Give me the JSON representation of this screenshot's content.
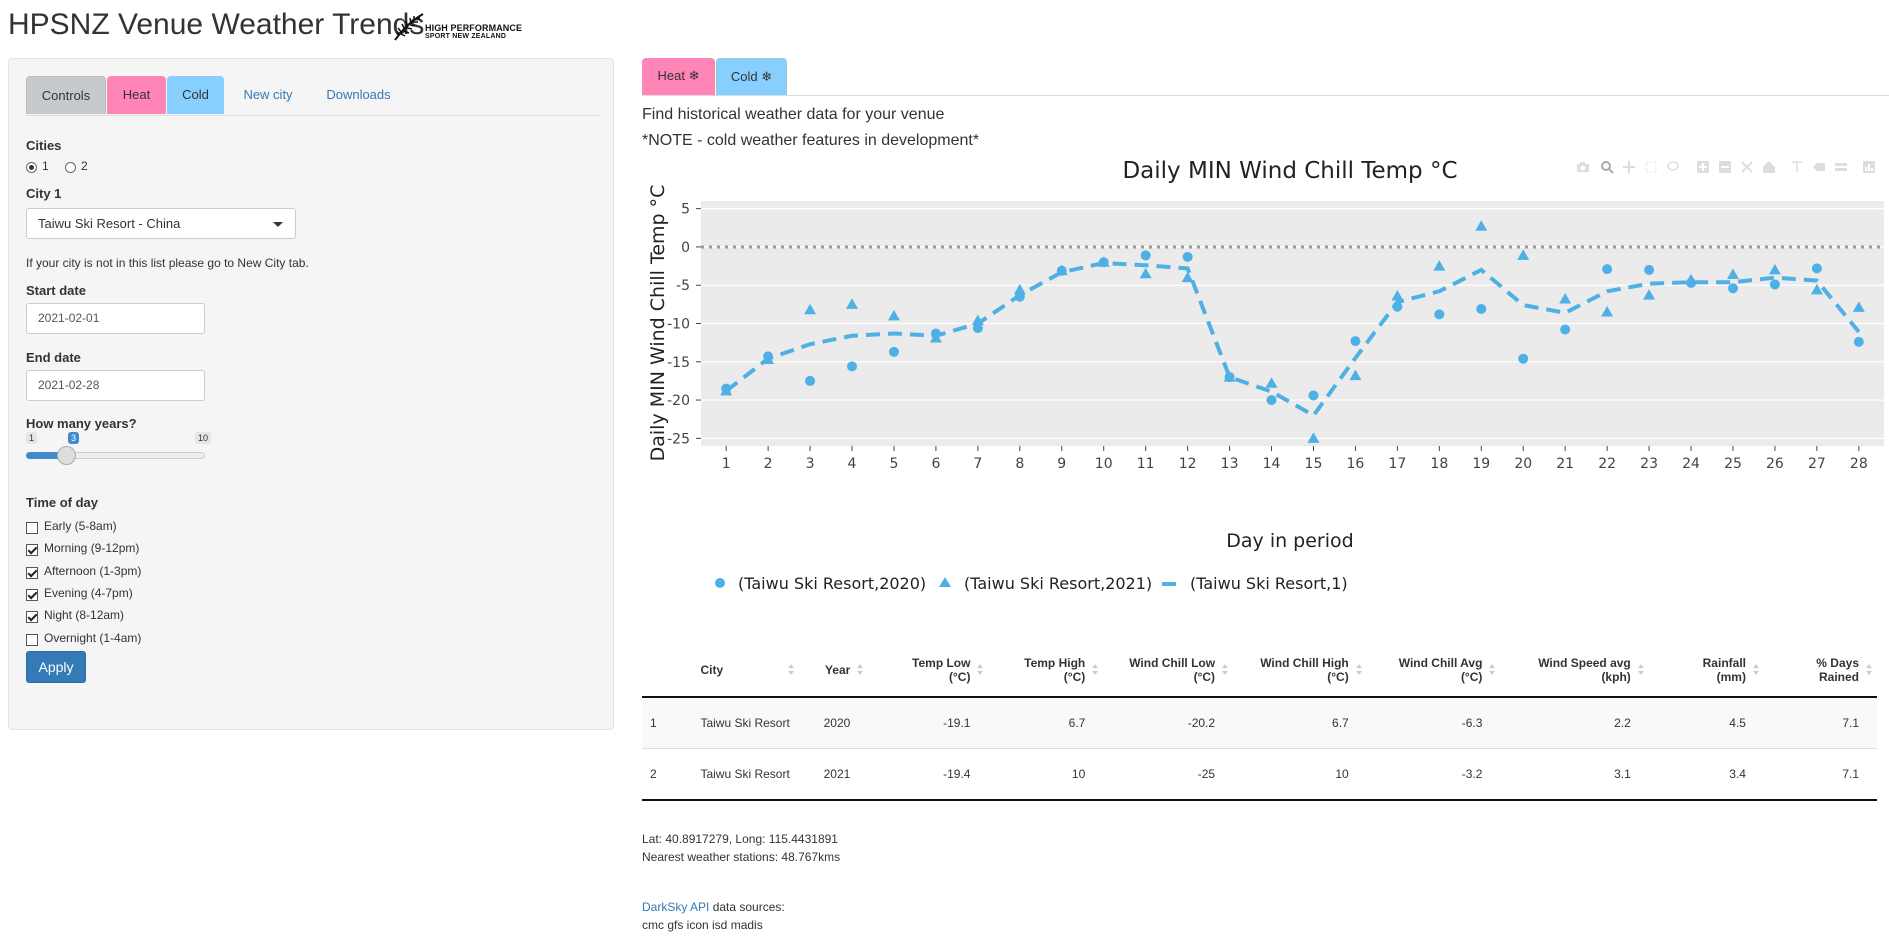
{
  "app": {
    "title": "HPSNZ Venue Weather Trends",
    "logo_line1": "HIGH PERFORMANCE",
    "logo_line2": "SPORT NEW ZEALAND"
  },
  "sidebar": {
    "tabs": [
      {
        "label": "Controls",
        "color": "#c7cacd"
      },
      {
        "label": "Heat",
        "color": "#ff85b6"
      },
      {
        "label": "Cold",
        "color": "#87cfff"
      },
      {
        "label": "New city"
      },
      {
        "label": "Downloads"
      }
    ],
    "cities_label": "Cities",
    "cities_options": [
      "1",
      "2"
    ],
    "cities_selected": "1",
    "city1_label": "City 1",
    "city1_value": "Taiwu Ski Resort - China",
    "city_note": "If your city is not in this list please go to New City tab.",
    "start_label": "Start date",
    "start_value": "2021-02-01",
    "end_label": "End date",
    "end_value": "2021-02-28",
    "years_label": "How many years?",
    "years_min": "1",
    "years_max": "10",
    "years_value": "3",
    "years_fraction": 0.222,
    "time_label": "Time of day",
    "time_options": [
      {
        "label": "Early (5-8am)",
        "checked": false
      },
      {
        "label": "Morning (9-12pm)",
        "checked": true
      },
      {
        "label": "Afternoon (1-3pm)",
        "checked": true
      },
      {
        "label": "Evening (4-7pm)",
        "checked": true
      },
      {
        "label": "Night (8-12am)",
        "checked": true
      },
      {
        "label": "Overnight (1-4am)",
        "checked": false
      }
    ],
    "apply_label": "Apply"
  },
  "main": {
    "tabs": [
      {
        "label": "Heat ❄",
        "color": "#ff85b6"
      },
      {
        "label": "Cold ❄",
        "color": "#87cfff"
      }
    ],
    "intro": "Find historical weather data for your venue",
    "note": "*NOTE - cold weather features in development*"
  },
  "chart_data": {
    "type": "scatter",
    "title": "Daily MIN Wind Chill Temp °C",
    "xlabel": "Day in period",
    "ylabel": "Daily MIN Wind Chill Temp °C",
    "x": [
      1,
      2,
      3,
      4,
      5,
      6,
      7,
      8,
      9,
      10,
      11,
      12,
      13,
      14,
      15,
      16,
      17,
      18,
      19,
      20,
      21,
      22,
      23,
      24,
      25,
      26,
      27,
      28
    ],
    "ylim": [
      -26,
      6
    ],
    "yticks": [
      5,
      0,
      -5,
      -10,
      -15,
      -20,
      -25
    ],
    "reference_line": 0,
    "color": "#4fb0e6",
    "series": [
      {
        "name": "(Taiwu Ski Resort,2020)",
        "marker": "circle",
        "values": [
          -18.5,
          -14.3,
          -17.5,
          -15.6,
          -13.7,
          -11.3,
          -10.6,
          -6.5,
          -3.1,
          -2.0,
          -1.1,
          -1.3,
          -17.0,
          -20.0,
          -19.4,
          -12.3,
          -7.8,
          -8.8,
          -8.1,
          -14.6,
          -10.8,
          -2.9,
          -3.0,
          -4.7,
          -5.4,
          -4.9,
          -2.8,
          -12.4
        ]
      },
      {
        "name": "(Taiwu Ski Resort,2021)",
        "marker": "triangle",
        "values": [
          -18.8,
          -14.7,
          -8.2,
          -7.5,
          -9.0,
          -11.9,
          -9.6,
          -5.6,
          -3.1,
          -2.0,
          -3.5,
          -4.0,
          -17.0,
          -17.8,
          -25.0,
          -16.8,
          -6.4,
          -2.5,
          2.7,
          -1.1,
          -6.8,
          -8.5,
          -6.3,
          -4.3,
          -3.6,
          -3.0,
          -5.6,
          -7.9
        ]
      },
      {
        "name": "(Taiwu Ski Resort,1)",
        "marker": "dash",
        "values": [
          -18.8,
          -14.6,
          -12.7,
          -11.6,
          -11.3,
          -11.6,
          -10.0,
          -6.3,
          -3.3,
          -2.1,
          -2.4,
          -2.8,
          -17.0,
          -18.9,
          -22.0,
          -14.5,
          -7.2,
          -5.8,
          -3.0,
          -7.6,
          -8.6,
          -5.8,
          -4.8,
          -4.6,
          -4.6,
          -4.0,
          -4.4,
          -11.1
        ]
      }
    ]
  },
  "table": {
    "headers": [
      [
        "",
        ""
      ],
      [
        "City",
        ""
      ],
      [
        "Year",
        ""
      ],
      [
        "Temp Low",
        "(°C)"
      ],
      [
        "Temp High",
        "(°C)"
      ],
      [
        "Wind Chill Low",
        "(°C)"
      ],
      [
        "Wind Chill High",
        "(°C)"
      ],
      [
        "Wind Chill Avg",
        "(°C)"
      ],
      [
        "Wind Speed avg",
        "(kph)"
      ],
      [
        "Rainfall",
        "(mm)"
      ],
      [
        "% Days",
        "Rained"
      ]
    ],
    "rows": [
      [
        "1",
        "Taiwu Ski Resort",
        "2020",
        "-19.1",
        "6.7",
        "-20.2",
        "6.7",
        "-6.3",
        "2.2",
        "4.5",
        "7.1"
      ],
      [
        "2",
        "Taiwu Ski Resort",
        "2021",
        "-19.4",
        "10",
        "-25",
        "10",
        "-3.2",
        "3.1",
        "3.4",
        "7.1"
      ]
    ]
  },
  "footer": {
    "latlong": "Lat: 40.8917279, Long: 115.4431891",
    "nearest": "Nearest weather stations: 48.767kms",
    "api_link": "DarkSky API",
    "sources_label": " data sources:",
    "sources": "cmc gfs icon isd madis"
  }
}
